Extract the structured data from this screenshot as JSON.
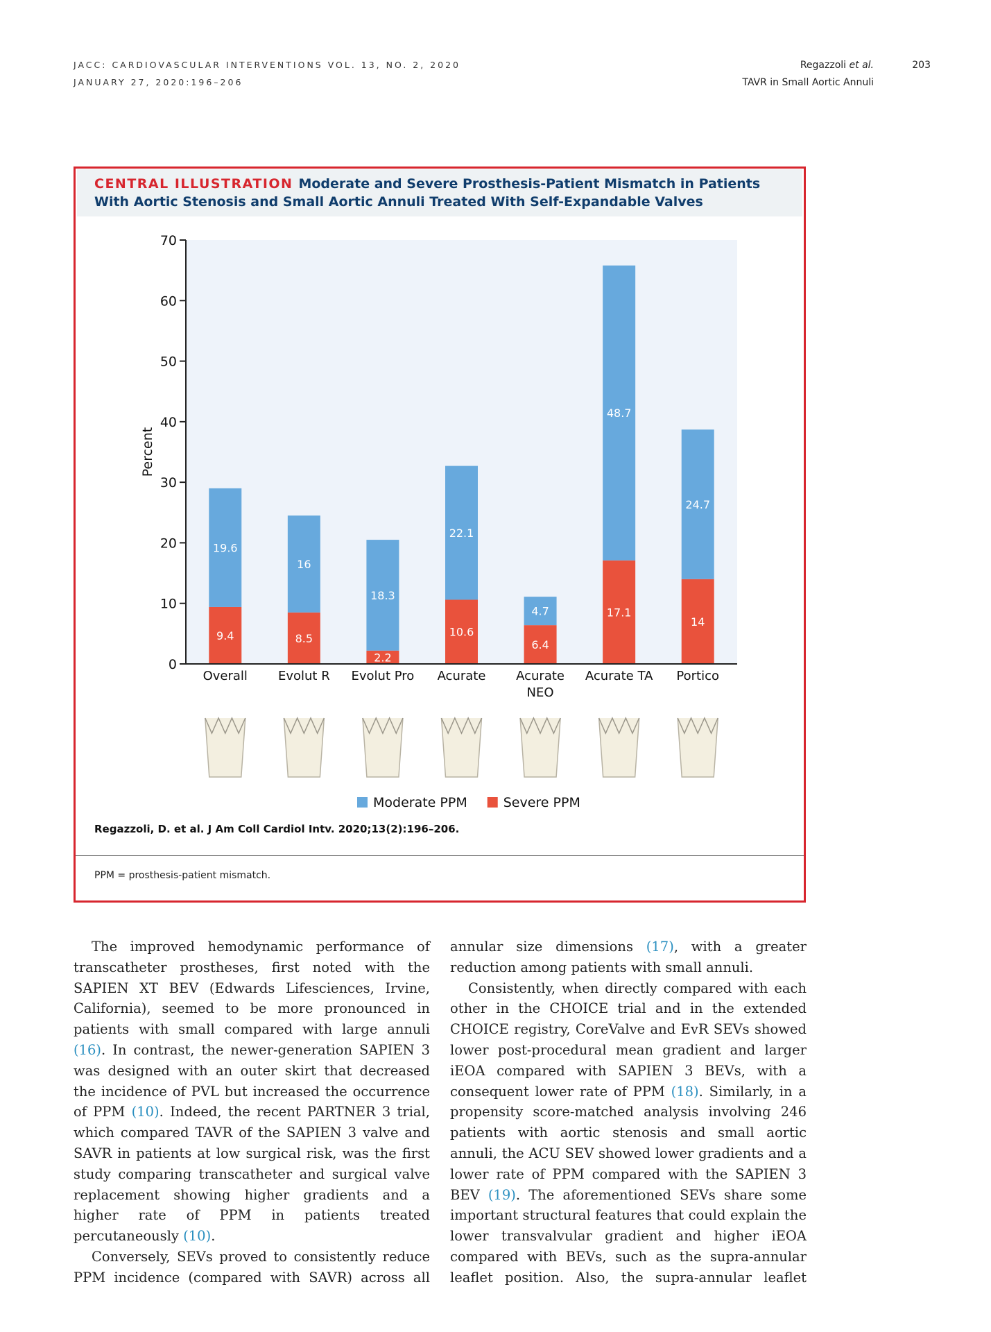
{
  "header": {
    "journal_line_1": "JACC: CARDIOVASCULAR INTERVENTIONS VOL. 13, NO. 2, 2020",
    "journal_line_2": "JANUARY 27, 2020:196–206",
    "author": "Regazzoli",
    "author_suffix": "et al.",
    "page_number": "203",
    "running_title": "TAVR in Small Aortic Annuli"
  },
  "illustration": {
    "label": "CENTRAL ILLUSTRATION",
    "title": "Moderate and Severe Prosthesis-Patient Mismatch in Patients With Aortic Stenosis and Small Aortic Annuli Treated With Self-Expandable Valves",
    "citation": "Regazzoli, D. et al. J Am Coll Cardiol Intv. 2020;13(2):196–206.",
    "footnote": "PPM = prosthesis-patient mismatch."
  },
  "chart_data": {
    "type": "stacked_bar",
    "y_label": "Percent",
    "categories": [
      "Overall",
      "Evolut R",
      "Evolut Pro",
      "Acurate",
      "Acurate NEO",
      "Acurate TA",
      "Portico"
    ],
    "series": [
      {
        "name": "Moderate PPM",
        "color": "#67a9dd",
        "values": [
          19.6,
          16,
          18.3,
          22.1,
          4.7,
          48.7,
          24.7
        ]
      },
      {
        "name": "Severe PPM",
        "color": "#e9523c",
        "values": [
          9.4,
          8.5,
          2.2,
          10.6,
          6.4,
          17.1,
          14
        ]
      }
    ],
    "ylim": [
      0,
      70
    ],
    "yticks": [
      0,
      10,
      20,
      30,
      40,
      50,
      60,
      70
    ],
    "legend": "bottom"
  },
  "body": {
    "columns": [
      [
        [
          "The improved hemodynamic performance of transcatheter prostheses, first noted with the SAPIEN XT BEV (Edwards Lifesciences, Irvine, California), seemed to be more pronounced in patients with small compared with large annuli ",
          "(16)",
          ". In contrast, the newer-generation SAPIEN 3 was designed with an outer skirt that decreased the incidence of PVL but increased the occurrence of PPM ",
          "(10)",
          ". Indeed, the recent PARTNER 3 trial, which compared TAVR of the SAPIEN 3 valve and SAVR in patients at low surgical risk, was the first study comparing transcatheter and surgical valve replacement showing higher gradients and a higher rate of PPM in patients treated percutaneously ",
          "(10)",
          "."
        ],
        [
          "Conversely, SEVs proved to consistently reduce PPM incidence (compared with SAVR) across all"
        ]
      ],
      [
        [
          "annular size dimensions ",
          "(17)",
          ", with a greater reduction among patients with small annuli."
        ],
        [
          "Consistently, when directly compared with each other in the CHOICE trial and in the extended CHOICE registry, CoreValve and EvR SEVs showed lower post-procedural mean gradient and larger iEOA compared with SAPIEN 3 BEVs, with a consequent lower rate of PPM ",
          "(18)",
          ". Similarly, in a propensity score-matched analysis involving 246 patients with aortic stenosis and small aortic annuli, the ACU SEV showed lower gradients and a lower rate of PPM compared with the SAPIEN 3 BEV ",
          "(19)",
          ". The aforementioned SEVs share some important structural features that could explain the lower transvalvular gradient and higher iEOA compared with BEVs, such as the supra-annular leaflet position. Also, the supra-annular leaflet"
        ]
      ]
    ]
  }
}
